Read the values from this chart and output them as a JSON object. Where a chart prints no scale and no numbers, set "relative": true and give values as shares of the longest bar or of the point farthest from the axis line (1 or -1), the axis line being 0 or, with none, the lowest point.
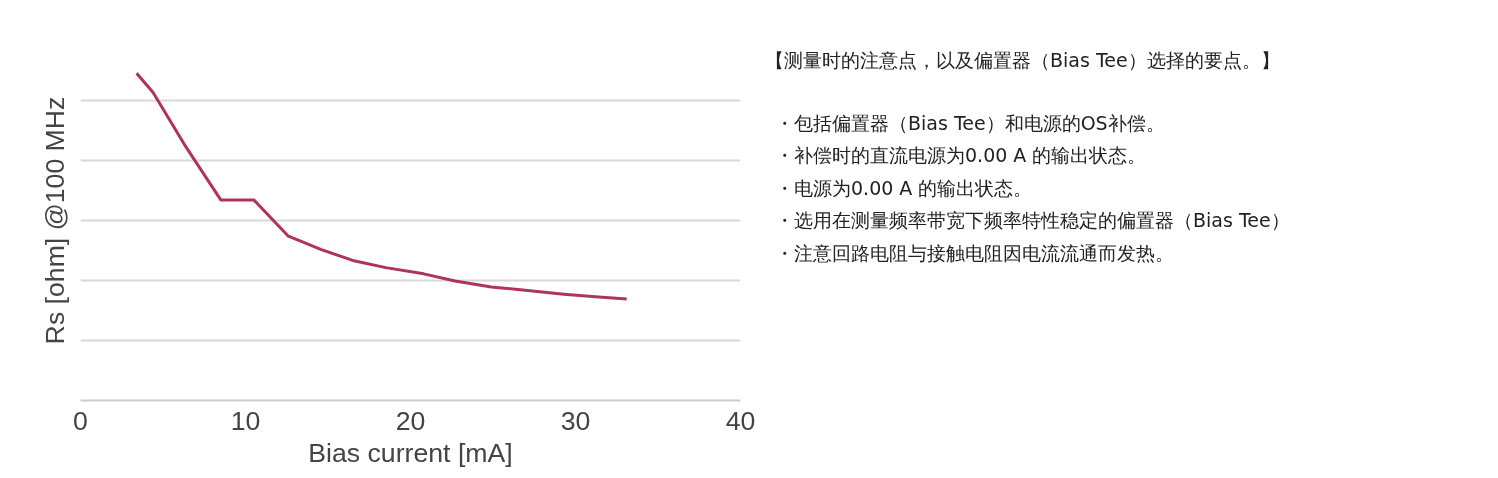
{
  "chart_data": [
    {
      "type": "line",
      "xlabel": "Bias current [mA]",
      "ylabel": "Rs [ohm] @100 MHz",
      "relative": true,
      "xlim": [
        0,
        40
      ],
      "xticks": [
        0,
        10,
        20,
        30,
        40
      ],
      "tick_labels": "x",
      "grid": "y",
      "series": [
        {
          "color": "#b0335a",
          "x": [
            3.4,
            4.4,
            6.3,
            8.5,
            10.5,
            12.6,
            14.6,
            16.5,
            18.5,
            20.8,
            22.7,
            24.9,
            27.1,
            29.3,
            31.2,
            33.1
          ],
          "values": [
            1,
            0.941,
            0.782,
            0.613,
            0.613,
            0.502,
            0.461,
            0.428,
            0.406,
            0.387,
            0.365,
            0.347,
            0.336,
            0.325,
            0.317,
            0.31
          ]
        }
      ]
    },
    {
      "type": "other",
      "title": "【测量时的注意点，以及偏置器（Bias Tee）选择的要点。】",
      "annotations": [
        "・包括偏置器（Bias Tee）和电源的OS补偿。",
        "・补偿时的直流电源为0.00 A 的输出状态。",
        "・电源为0.00 A 的输出状态。",
        "・选用在测量频率带宽下频率特性稳定的偏置器（Bias Tee）",
        "・注意回路电阻与接触电阻因电流流通而发热。"
      ]
    }
  ]
}
